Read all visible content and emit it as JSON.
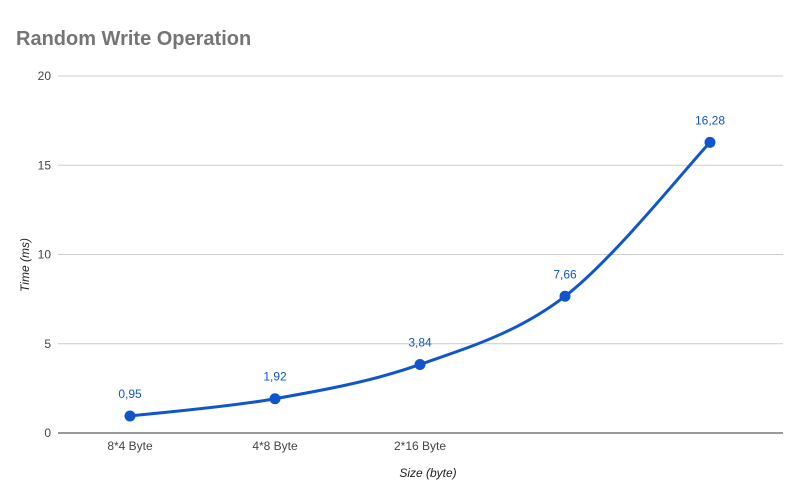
{
  "chart_data": {
    "type": "line",
    "title": "Random Write Operation",
    "xlabel": "Size (byte)",
    "ylabel": "Time (ms)",
    "categories": [
      "8*4 Byte",
      "4*8 Byte",
      "2*16 Byte",
      "",
      ""
    ],
    "series": [
      {
        "values": [
          0.95,
          1.92,
          3.84,
          7.66,
          16.28
        ],
        "labels": [
          "0,95",
          "1,92",
          "3,84",
          "7,66",
          "16,28"
        ],
        "color": "#1155cc"
      }
    ],
    "ylim": [
      0,
      20
    ],
    "yticks": [
      0,
      5,
      10,
      15,
      20
    ],
    "ytick_labels": [
      "0",
      "5",
      "10",
      "15",
      "20"
    ],
    "grid": true,
    "smooth": true,
    "legend": "none",
    "colors": {
      "title": "#757575",
      "grid": "#cccccc",
      "axis": "#333333",
      "tick": "#444444"
    }
  }
}
